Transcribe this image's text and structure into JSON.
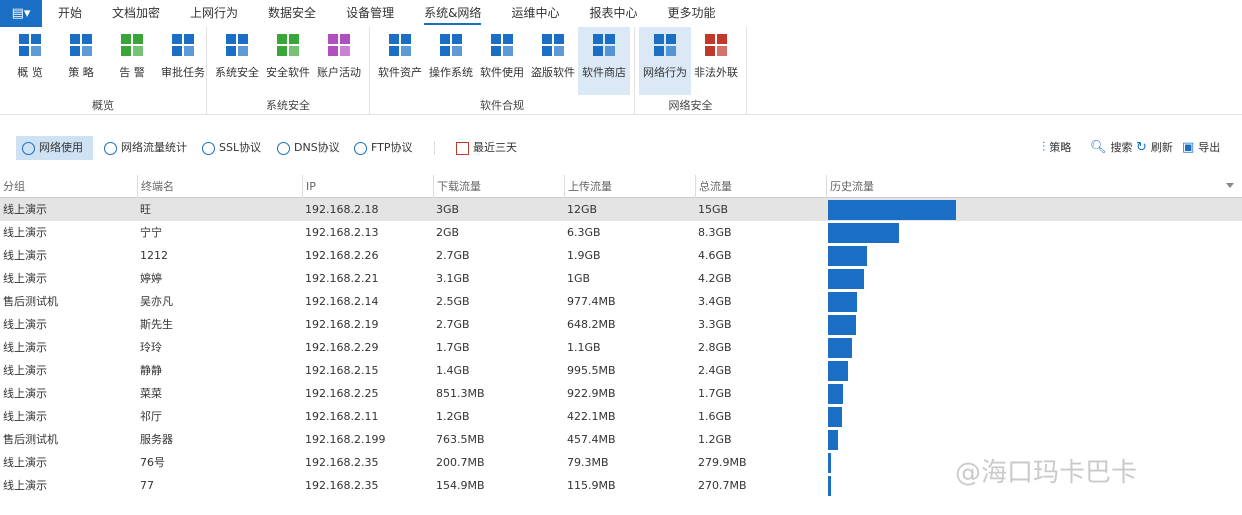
{
  "menu": {
    "items": [
      "开始",
      "文档加密",
      "上网行为",
      "数据安全",
      "设备管理",
      "系统&网络",
      "运维中心",
      "报表中心",
      "更多功能"
    ],
    "active": "系统&网络"
  },
  "ribbon": {
    "groups": [
      {
        "label": "概览",
        "buttons": [
          {
            "label": "概 览",
            "icon": "grid-icon"
          },
          {
            "label": "策 略",
            "icon": "sliders-icon"
          },
          {
            "label": "告 警",
            "icon": "bell-icon"
          },
          {
            "label": "审批任务",
            "icon": "clipboard-check-icon"
          }
        ]
      },
      {
        "label": "系统安全",
        "buttons": [
          {
            "label": "系统安全",
            "icon": "shield-monitor-icon"
          },
          {
            "label": "安全软件",
            "icon": "shield-icon"
          },
          {
            "label": "账户活动",
            "icon": "user-icon"
          }
        ]
      },
      {
        "label": "软件合规",
        "buttons": [
          {
            "label": "软件资产",
            "icon": "window-icon"
          },
          {
            "label": "操作系统",
            "icon": "windows-icon"
          },
          {
            "label": "软件使用",
            "icon": "devices-icon"
          },
          {
            "label": "盗版软件",
            "icon": "window-warning-icon"
          },
          {
            "label": "软件商店",
            "icon": "store-icon"
          }
        ]
      },
      {
        "label": "网络安全",
        "buttons": [
          {
            "label": "网络行为",
            "icon": "globe-chart-icon"
          },
          {
            "label": "非法外联",
            "icon": "firewall-icon"
          }
        ]
      }
    ]
  },
  "toolbar": {
    "tabs": [
      "网络使用",
      "网络流量统计",
      "SSL协议",
      "DNS协议",
      "FTP协议"
    ],
    "date_range": "最近三天",
    "actions": [
      "策略",
      "搜索",
      "刷新",
      "导出"
    ]
  },
  "table": {
    "columns": [
      "分组",
      "终端名",
      "IP",
      "下载流量",
      "上传流量",
      "总流量",
      "历史流量"
    ],
    "rows": [
      [
        "线上演示",
        "旺",
        "192.168.2.18",
        "3GB",
        "12GB",
        "15GB"
      ],
      [
        "线上演示",
        "宁宁",
        "192.168.2.13",
        "2GB",
        "6.3GB",
        "8.3GB"
      ],
      [
        "线上演示",
        "1212",
        "192.168.2.26",
        "2.7GB",
        "1.9GB",
        "4.6GB"
      ],
      [
        "线上演示",
        "婷婷",
        "192.168.2.21",
        "3.1GB",
        "1GB",
        "4.2GB"
      ],
      [
        "售后测试机",
        "吴亦凡",
        "192.168.2.14",
        "2.5GB",
        "977.4MB",
        "3.4GB"
      ],
      [
        "线上演示",
        "斯先生",
        "192.168.2.19",
        "2.7GB",
        "648.2MB",
        "3.3GB"
      ],
      [
        "线上演示",
        "玲玲",
        "192.168.2.29",
        "1.7GB",
        "1.1GB",
        "2.8GB"
      ],
      [
        "线上演示",
        "静静",
        "192.168.2.15",
        "1.4GB",
        "995.5MB",
        "2.4GB"
      ],
      [
        "线上演示",
        "菜菜",
        "192.168.2.25",
        "851.3MB",
        "922.9MB",
        "1.7GB"
      ],
      [
        "线上演示",
        "祁厅",
        "192.168.2.11",
        "1.2GB",
        "422.1MB",
        "1.6GB"
      ],
      [
        "售后测试机",
        "服务器",
        "192.168.2.199",
        "763.5MB",
        "457.4MB",
        "1.2GB"
      ],
      [
        "线上演示",
        "76号",
        "192.168.2.35",
        "200.7MB",
        "79.3MB",
        "279.9MB"
      ],
      [
        "线上演示",
        "77",
        "192.168.2.35",
        "154.9MB",
        "115.9MB",
        "270.7MB"
      ]
    ]
  },
  "bar_color": "#1a6fc4",
  "watermark": "@海口玛卡巴卡"
}
